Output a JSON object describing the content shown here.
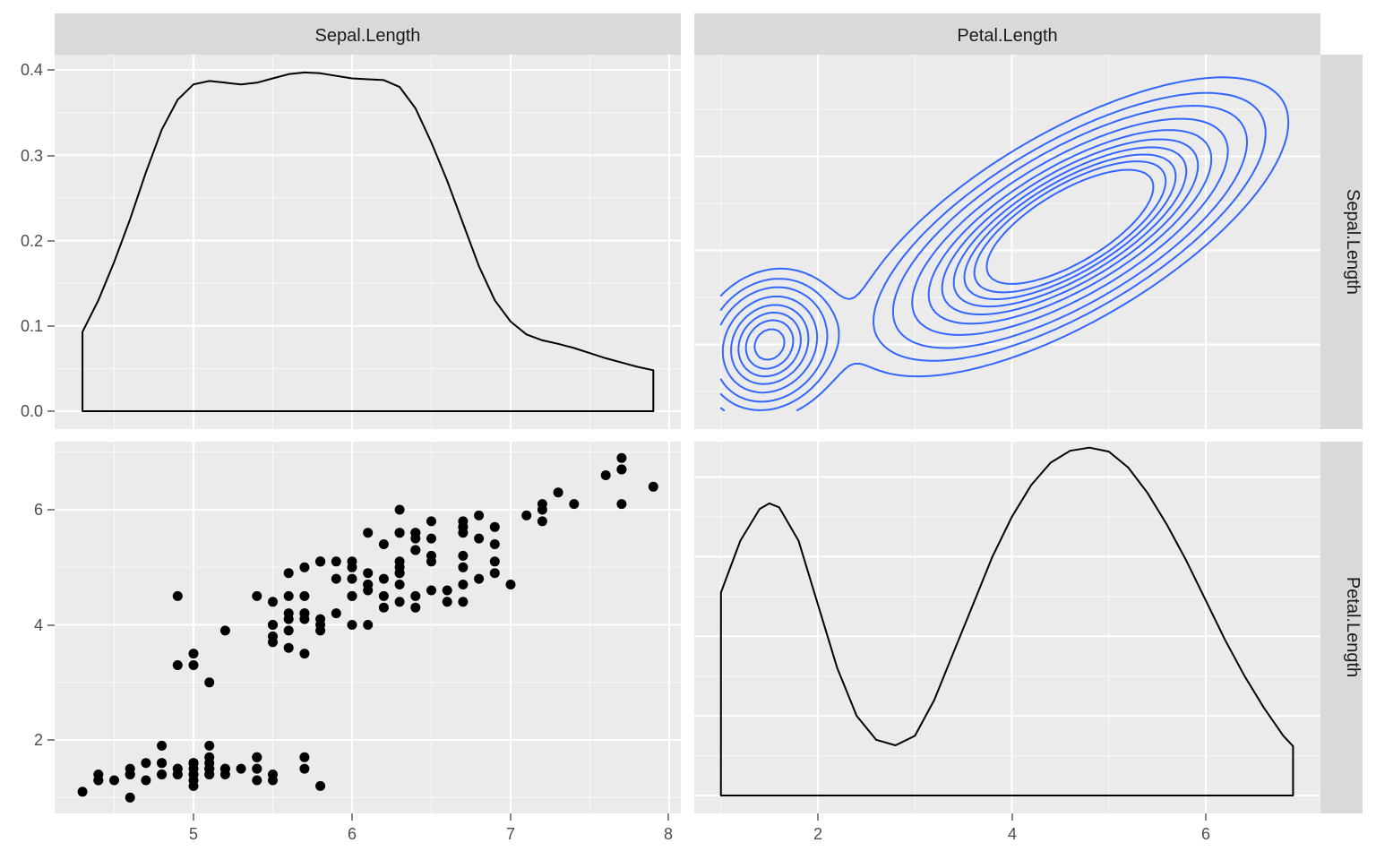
{
  "chart_data": {
    "type": "scatter",
    "layout": "pairs-matrix",
    "variables": [
      "Sepal.Length",
      "Petal.Length"
    ],
    "strips": {
      "top": [
        "Sepal.Length",
        "Petal.Length"
      ],
      "right": [
        "Sepal.Length",
        "Petal.Length"
      ]
    },
    "axes": {
      "y_density_ticks": [
        "0.0",
        "0.1",
        "0.2",
        "0.3",
        "0.4"
      ],
      "y_petal_ticks": [
        "2",
        "4",
        "6"
      ],
      "x_sepal_ticks": [
        "5",
        "6",
        "7",
        "8"
      ],
      "x_petal_ticks": [
        "2",
        "4",
        "6"
      ],
      "sepal_range": [
        4.3,
        7.9
      ],
      "petal_range": [
        1.0,
        6.9
      ],
      "density_range": [
        0,
        0.4
      ]
    },
    "grid": true,
    "colors": {
      "panel_bg": "#ebebeb",
      "strip_bg": "#d9d9d9",
      "grid_major": "#ffffff",
      "points": "#000000",
      "density_line": "#000000",
      "contour_line": "#3366ff"
    },
    "panels": [
      {
        "id": "sepal-density",
        "type": "density",
        "x_var": "Sepal.Length",
        "x": [
          4.3,
          4.4,
          4.5,
          4.6,
          4.7,
          4.8,
          4.9,
          5.0,
          5.1,
          5.2,
          5.3,
          5.4,
          5.5,
          5.6,
          5.7,
          5.8,
          5.9,
          6.0,
          6.1,
          6.2,
          6.3,
          6.4,
          6.5,
          6.6,
          6.7,
          6.8,
          6.9,
          7.0,
          7.1,
          7.2,
          7.3,
          7.4,
          7.5,
          7.6,
          7.7,
          7.8,
          7.9
        ],
        "y": [
          0.093,
          0.13,
          0.175,
          0.225,
          0.28,
          0.33,
          0.365,
          0.383,
          0.387,
          0.385,
          0.383,
          0.385,
          0.39,
          0.395,
          0.397,
          0.396,
          0.393,
          0.39,
          0.389,
          0.388,
          0.38,
          0.355,
          0.315,
          0.27,
          0.22,
          0.17,
          0.13,
          0.105,
          0.09,
          0.083,
          0.079,
          0.074,
          0.068,
          0.062,
          0.057,
          0.052,
          0.048
        ]
      },
      {
        "id": "petal-vs-sepal-contour",
        "type": "density2d",
        "x_var": "Petal.Length",
        "y_var": "Sepal.Length",
        "modes": [
          {
            "x": 1.5,
            "y": 5.0,
            "sx": 0.32,
            "sy": 0.34,
            "rho": 0.15,
            "w": 0.33
          },
          {
            "x": 4.6,
            "y": 6.25,
            "sx": 0.85,
            "sy": 0.6,
            "rho": 0.7,
            "w": 0.67
          }
        ],
        "levels": [
          0.03,
          0.06,
          0.1,
          0.16,
          0.23,
          0.3,
          0.37,
          0.44,
          0.51,
          0.6
        ]
      },
      {
        "id": "sepal-vs-petal-scatter",
        "type": "scatter",
        "x_var": "Sepal.Length",
        "y_var": "Petal.Length",
        "points": [
          [
            5.1,
            1.4
          ],
          [
            4.9,
            1.4
          ],
          [
            4.7,
            1.3
          ],
          [
            4.6,
            1.5
          ],
          [
            5.0,
            1.4
          ],
          [
            5.4,
            1.7
          ],
          [
            4.6,
            1.4
          ],
          [
            5.0,
            1.5
          ],
          [
            4.4,
            1.4
          ],
          [
            4.9,
            1.5
          ],
          [
            5.4,
            1.5
          ],
          [
            4.8,
            1.6
          ],
          [
            4.8,
            1.4
          ],
          [
            4.3,
            1.1
          ],
          [
            5.8,
            1.2
          ],
          [
            5.7,
            1.5
          ],
          [
            5.4,
            1.3
          ],
          [
            5.1,
            1.4
          ],
          [
            5.7,
            1.7
          ],
          [
            5.1,
            1.5
          ],
          [
            5.4,
            1.7
          ],
          [
            5.1,
            1.5
          ],
          [
            4.6,
            1.0
          ],
          [
            5.1,
            1.7
          ],
          [
            4.8,
            1.9
          ],
          [
            5.0,
            1.6
          ],
          [
            5.0,
            1.6
          ],
          [
            5.2,
            1.5
          ],
          [
            5.2,
            1.4
          ],
          [
            4.7,
            1.6
          ],
          [
            4.8,
            1.6
          ],
          [
            5.4,
            1.5
          ],
          [
            5.2,
            1.5
          ],
          [
            5.5,
            1.4
          ],
          [
            4.9,
            1.5
          ],
          [
            5.0,
            1.2
          ],
          [
            5.5,
            1.3
          ],
          [
            4.9,
            1.4
          ],
          [
            4.4,
            1.3
          ],
          [
            5.1,
            1.5
          ],
          [
            5.0,
            1.3
          ],
          [
            4.5,
            1.3
          ],
          [
            4.4,
            1.3
          ],
          [
            5.0,
            1.6
          ],
          [
            5.1,
            1.9
          ],
          [
            4.8,
            1.4
          ],
          [
            5.1,
            1.6
          ],
          [
            4.6,
            1.4
          ],
          [
            5.3,
            1.5
          ],
          [
            5.0,
            1.4
          ],
          [
            7.0,
            4.7
          ],
          [
            6.4,
            4.5
          ],
          [
            6.9,
            4.9
          ],
          [
            5.5,
            4.0
          ],
          [
            6.5,
            4.6
          ],
          [
            5.7,
            4.5
          ],
          [
            6.3,
            4.7
          ],
          [
            4.9,
            3.3
          ],
          [
            6.6,
            4.6
          ],
          [
            5.2,
            3.9
          ],
          [
            5.0,
            3.5
          ],
          [
            5.9,
            4.2
          ],
          [
            6.0,
            4.0
          ],
          [
            6.1,
            4.7
          ],
          [
            5.6,
            3.6
          ],
          [
            6.7,
            4.4
          ],
          [
            5.6,
            4.5
          ],
          [
            5.8,
            4.1
          ],
          [
            6.2,
            4.5
          ],
          [
            5.6,
            3.9
          ],
          [
            5.9,
            4.8
          ],
          [
            6.1,
            4.0
          ],
          [
            6.3,
            4.9
          ],
          [
            6.1,
            4.7
          ],
          [
            6.4,
            4.3
          ],
          [
            6.6,
            4.4
          ],
          [
            6.8,
            4.8
          ],
          [
            6.7,
            5.0
          ],
          [
            6.0,
            4.5
          ],
          [
            5.7,
            3.5
          ],
          [
            5.5,
            3.8
          ],
          [
            5.5,
            3.7
          ],
          [
            5.8,
            3.9
          ],
          [
            6.0,
            5.1
          ],
          [
            5.4,
            4.5
          ],
          [
            6.0,
            4.5
          ],
          [
            6.7,
            4.7
          ],
          [
            6.3,
            4.4
          ],
          [
            5.6,
            4.1
          ],
          [
            5.5,
            4.0
          ],
          [
            5.5,
            4.4
          ],
          [
            6.1,
            4.6
          ],
          [
            5.8,
            4.0
          ],
          [
            5.0,
            3.3
          ],
          [
            5.6,
            4.2
          ],
          [
            5.7,
            4.2
          ],
          [
            5.7,
            4.2
          ],
          [
            6.2,
            4.3
          ],
          [
            5.1,
            3.0
          ],
          [
            5.7,
            4.1
          ],
          [
            6.3,
            6.0
          ],
          [
            5.8,
            5.1
          ],
          [
            7.1,
            5.9
          ],
          [
            6.3,
            5.6
          ],
          [
            6.5,
            5.8
          ],
          [
            7.6,
            6.6
          ],
          [
            4.9,
            4.5
          ],
          [
            7.3,
            6.3
          ],
          [
            6.7,
            5.8
          ],
          [
            7.2,
            6.1
          ],
          [
            6.5,
            5.1
          ],
          [
            6.4,
            5.3
          ],
          [
            6.8,
            5.5
          ],
          [
            5.7,
            5.0
          ],
          [
            5.8,
            5.1
          ],
          [
            6.4,
            5.3
          ],
          [
            6.5,
            5.5
          ],
          [
            7.7,
            6.7
          ],
          [
            7.7,
            6.9
          ],
          [
            6.0,
            5.0
          ],
          [
            6.9,
            5.7
          ],
          [
            5.6,
            4.9
          ],
          [
            7.7,
            6.7
          ],
          [
            6.3,
            4.9
          ],
          [
            6.7,
            5.7
          ],
          [
            7.2,
            6.0
          ],
          [
            6.2,
            4.8
          ],
          [
            6.1,
            4.9
          ],
          [
            6.4,
            5.6
          ],
          [
            7.2,
            5.8
          ],
          [
            7.4,
            6.1
          ],
          [
            7.9,
            6.4
          ],
          [
            6.4,
            5.6
          ],
          [
            6.3,
            5.1
          ],
          [
            6.1,
            5.6
          ],
          [
            7.7,
            6.1
          ],
          [
            6.3,
            5.6
          ],
          [
            6.4,
            5.5
          ],
          [
            6.0,
            4.8
          ],
          [
            6.9,
            5.4
          ],
          [
            6.7,
            5.6
          ],
          [
            6.9,
            5.1
          ],
          [
            5.8,
            5.1
          ],
          [
            6.8,
            5.9
          ],
          [
            6.7,
            5.7
          ],
          [
            6.7,
            5.2
          ],
          [
            6.3,
            5.0
          ],
          [
            6.5,
            5.2
          ],
          [
            6.2,
            5.4
          ],
          [
            5.9,
            5.1
          ]
        ]
      },
      {
        "id": "petal-density",
        "type": "density",
        "x_var": "Petal.Length",
        "x": [
          1.0,
          1.2,
          1.4,
          1.5,
          1.6,
          1.8,
          2.0,
          2.2,
          2.4,
          2.6,
          2.8,
          3.0,
          3.2,
          3.4,
          3.6,
          3.8,
          4.0,
          4.2,
          4.4,
          4.6,
          4.8,
          5.0,
          5.2,
          5.4,
          5.6,
          5.8,
          6.0,
          6.2,
          6.4,
          6.6,
          6.8,
          6.9
        ],
        "y": [
          0.255,
          0.32,
          0.36,
          0.367,
          0.362,
          0.32,
          0.24,
          0.16,
          0.1,
          0.07,
          0.063,
          0.075,
          0.12,
          0.18,
          0.24,
          0.3,
          0.35,
          0.39,
          0.418,
          0.433,
          0.437,
          0.432,
          0.412,
          0.38,
          0.34,
          0.295,
          0.245,
          0.195,
          0.15,
          0.11,
          0.075,
          0.062
        ]
      }
    ]
  }
}
